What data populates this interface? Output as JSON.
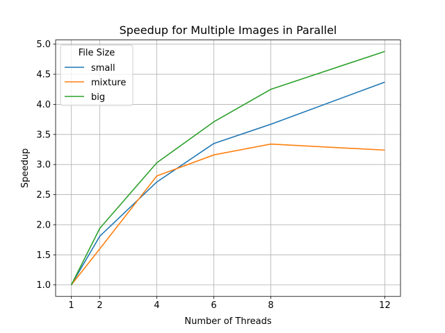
{
  "chart_data": {
    "type": "line",
    "title": "Speedup for Multiple Images in Parallel",
    "xlabel": "Number of Threads",
    "ylabel": "Speedup",
    "x": [
      1,
      2,
      4,
      6,
      8,
      12
    ],
    "xticks": [
      "1",
      "2",
      "4",
      "6",
      "8",
      "12"
    ],
    "yticks": [
      "1.0",
      "1.5",
      "2.0",
      "2.5",
      "3.0",
      "3.5",
      "4.0",
      "4.5",
      "5.0"
    ],
    "xlim": [
      0.45,
      12.55
    ],
    "ylim": [
      0.81,
      5.07
    ],
    "grid": true,
    "legend": {
      "title": "File Size",
      "placement": "upper-left"
    },
    "series": [
      {
        "name": "small",
        "color": "#1f77b4",
        "values": [
          1.0,
          1.81,
          2.71,
          3.35,
          3.67,
          4.37
        ]
      },
      {
        "name": "mixture",
        "color": "#ff7f0e",
        "values": [
          1.0,
          1.6,
          2.81,
          3.16,
          3.34,
          3.24
        ]
      },
      {
        "name": "big",
        "color": "#2ca02c",
        "values": [
          1.0,
          1.94,
          3.03,
          3.71,
          4.25,
          4.88
        ]
      }
    ]
  }
}
